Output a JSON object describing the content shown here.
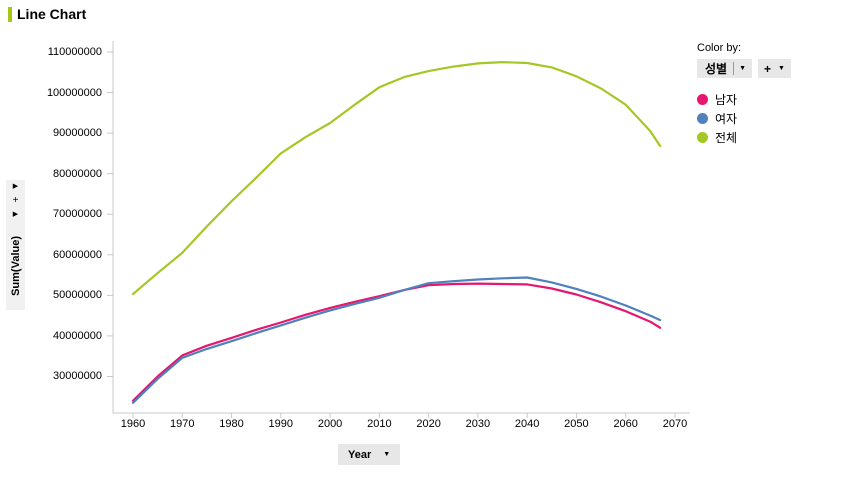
{
  "header": {
    "title": "Line Chart"
  },
  "colors": {
    "accent": "#a5c715",
    "axis": "#c9c9c9",
    "button_bg": "#e7e7e7",
    "text": "#000000"
  },
  "y_axis": {
    "selector_label": "Sum(Value)",
    "expand_arrow": "▶",
    "plus_label": "+"
  },
  "x_axis": {
    "selector_label": "Year",
    "dropdown_arrow": "▼"
  },
  "legend": {
    "color_by_label": "Color by:",
    "color_by_value": "성별",
    "add_label": "+",
    "dropdown_arrow": "▼",
    "items": [
      {
        "label": "남자",
        "color": "#e5176e"
      },
      {
        "label": "여자",
        "color": "#4e81bd"
      },
      {
        "label": "전체",
        "color": "#a5c725"
      }
    ]
  },
  "chart_data": {
    "type": "line",
    "title": "Line Chart",
    "xlabel": "Year",
    "ylabel": "Sum(Value)",
    "grid": false,
    "legend_position": "right",
    "x_ticks": [
      1960,
      1970,
      1980,
      1990,
      2000,
      2010,
      2020,
      2030,
      2040,
      2050,
      2060,
      2070
    ],
    "y_ticks": [
      110000000,
      100000000,
      90000000,
      80000000,
      70000000,
      60000000,
      50000000,
      40000000,
      30000000
    ],
    "xlim": [
      1954,
      2073
    ],
    "ylim": [
      21000000,
      112700000
    ],
    "x": [
      1960,
      1965,
      1970,
      1975,
      1980,
      1985,
      1990,
      1995,
      2000,
      2005,
      2010,
      2015,
      2020,
      2025,
      2030,
      2035,
      2040,
      2045,
      2050,
      2055,
      2060,
      2065,
      2067
    ],
    "series": [
      {
        "name": "남자",
        "color": "#e5176e",
        "values": [
          24000000,
          30000000,
          35200000,
          37600000,
          39500000,
          41500000,
          43300000,
          45200000,
          46900000,
          48400000,
          49800000,
          51300000,
          52500000,
          52800000,
          52900000,
          52800000,
          52700000,
          51700000,
          50200000,
          48300000,
          46100000,
          43500000,
          42000000
        ]
      },
      {
        "name": "여자",
        "color": "#4e81bd",
        "values": [
          23500000,
          29400000,
          34600000,
          36800000,
          38700000,
          40700000,
          42600000,
          44500000,
          46300000,
          47900000,
          49400000,
          51300000,
          53000000,
          53500000,
          53900000,
          54200000,
          54400000,
          53200000,
          51600000,
          49700000,
          47500000,
          45000000,
          43900000
        ]
      },
      {
        "name": "전체",
        "color": "#a5c725",
        "values": [
          50300000,
          55500000,
          60500000,
          67000000,
          73200000,
          79000000,
          85000000,
          89000000,
          92500000,
          97000000,
          101300000,
          103800000,
          105300000,
          106400000,
          107200000,
          107500000,
          107300000,
          106200000,
          104000000,
          101000000,
          97000000,
          90500000,
          86800000
        ]
      }
    ]
  }
}
